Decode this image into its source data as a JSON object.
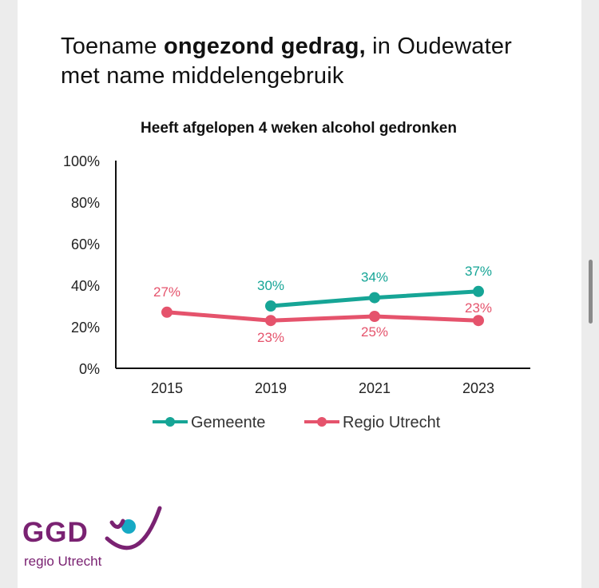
{
  "heading": {
    "part1": "Toename ",
    "bold": "ongezond gedrag,",
    "part2": " in Oudewater",
    "line2": "met name middelengebruik"
  },
  "chart_data": {
    "type": "line",
    "title": "Heeft afgelopen 4 weken alcohol gedronken",
    "categories": [
      "2015",
      "2019",
      "2021",
      "2023"
    ],
    "y_ticks": [
      "0%",
      "20%",
      "40%",
      "60%",
      "80%",
      "100%"
    ],
    "ylim": [
      0,
      100
    ],
    "grid": false,
    "legend_position": "bottom",
    "series": [
      {
        "name": "Gemeente",
        "color": "#16a596",
        "values": [
          null,
          30,
          34,
          37
        ],
        "labels": [
          null,
          "30%",
          "34%",
          "37%"
        ]
      },
      {
        "name": "Regio Utrecht",
        "color": "#e5536c",
        "values": [
          27,
          23,
          25,
          23
        ],
        "labels": [
          "27%",
          "23%",
          "25%",
          "23%"
        ]
      }
    ]
  },
  "logo": {
    "name": "GGD",
    "subtitle": "regio Utrecht",
    "color": "#7a2272",
    "accent_color": "#16a9c4"
  }
}
